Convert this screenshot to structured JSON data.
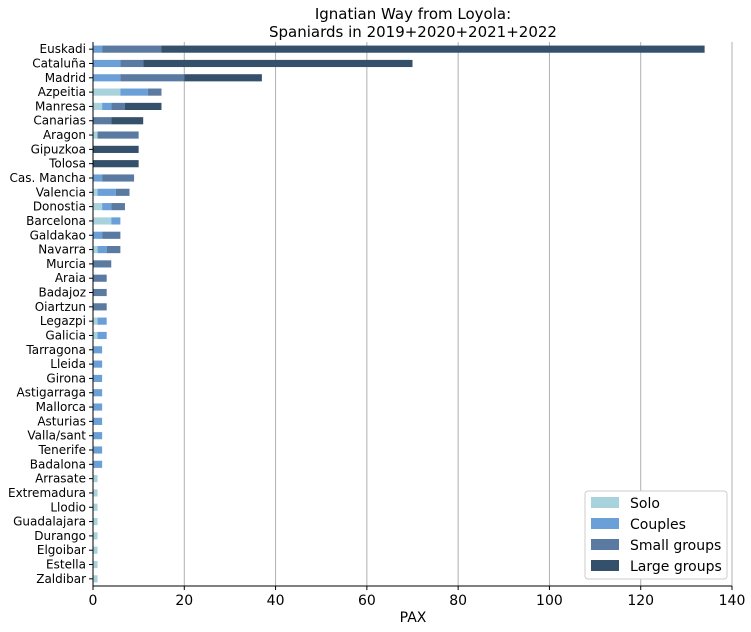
{
  "chart_data": {
    "type": "bar",
    "orientation": "horizontal",
    "stacked": true,
    "title_lines": [
      "Ignatian Way from Loyola:",
      "Spaniards in 2019+2020+2021+2022"
    ],
    "xlabel": "PAX",
    "ylabel": "",
    "xlim": [
      0,
      140
    ],
    "xticks": [
      0,
      20,
      40,
      60,
      80,
      100,
      120,
      140
    ],
    "grid": "vertical",
    "legend_position": "bottom-right",
    "categories": [
      "Euskadi",
      "Cataluña",
      "Madrid",
      "Azpeitia",
      "Manresa",
      "Canarias",
      "Aragon",
      "Gipuzkoa",
      "Tolosa",
      "Cas. Mancha",
      "Valencia",
      "Donostia",
      "Barcelona",
      "Galdakao",
      "Navarra",
      "Murcia",
      "Araia",
      "Badajoz",
      "Oiartzun",
      "Legazpi",
      "Galicia",
      "Tarragona",
      "Lleida",
      "Girona",
      "Astigarraga",
      "Mallorca",
      "Asturias",
      "Valla/sant",
      "Tenerife",
      "Badalona",
      "Arrasate",
      "Extremadura",
      "Llodio",
      "Guadalajara",
      "Durango",
      "Elgoibar",
      "Estella",
      "Zaldibar"
    ],
    "series": [
      {
        "name": "Solo",
        "color": "#a8d3dc",
        "values": [
          0,
          0,
          0,
          6,
          2,
          0,
          1,
          0,
          0,
          0,
          1,
          2,
          4,
          0,
          1,
          0,
          0,
          0,
          0,
          1,
          1,
          0,
          0,
          0,
          0,
          0,
          0,
          0,
          0,
          0,
          1,
          1,
          1,
          1,
          1,
          1,
          1,
          1
        ]
      },
      {
        "name": "Couples",
        "color": "#6b9fd8",
        "values": [
          2,
          6,
          6,
          6,
          2,
          0,
          0,
          0,
          0,
          2,
          4,
          2,
          2,
          2,
          2,
          0,
          0,
          0,
          0,
          2,
          2,
          2,
          2,
          2,
          2,
          2,
          2,
          2,
          2,
          2,
          0,
          0,
          0,
          0,
          0,
          0,
          0,
          0
        ]
      },
      {
        "name": "Small groups",
        "color": "#5b7aa2",
        "values": [
          13,
          5,
          14,
          3,
          3,
          4,
          9,
          0,
          0,
          7,
          3,
          3,
          0,
          4,
          3,
          4,
          3,
          3,
          3,
          0,
          0,
          0,
          0,
          0,
          0,
          0,
          0,
          0,
          0,
          0,
          0,
          0,
          0,
          0,
          0,
          0,
          0,
          0
        ]
      },
      {
        "name": "Large groups",
        "color": "#34506b",
        "values": [
          119,
          59,
          17,
          0,
          8,
          7,
          0,
          10,
          10,
          0,
          0,
          0,
          0,
          0,
          0,
          0,
          0,
          0,
          0,
          0,
          0,
          0,
          0,
          0,
          0,
          0,
          0,
          0,
          0,
          0,
          0,
          0,
          0,
          0,
          0,
          0,
          0,
          0
        ]
      }
    ]
  }
}
